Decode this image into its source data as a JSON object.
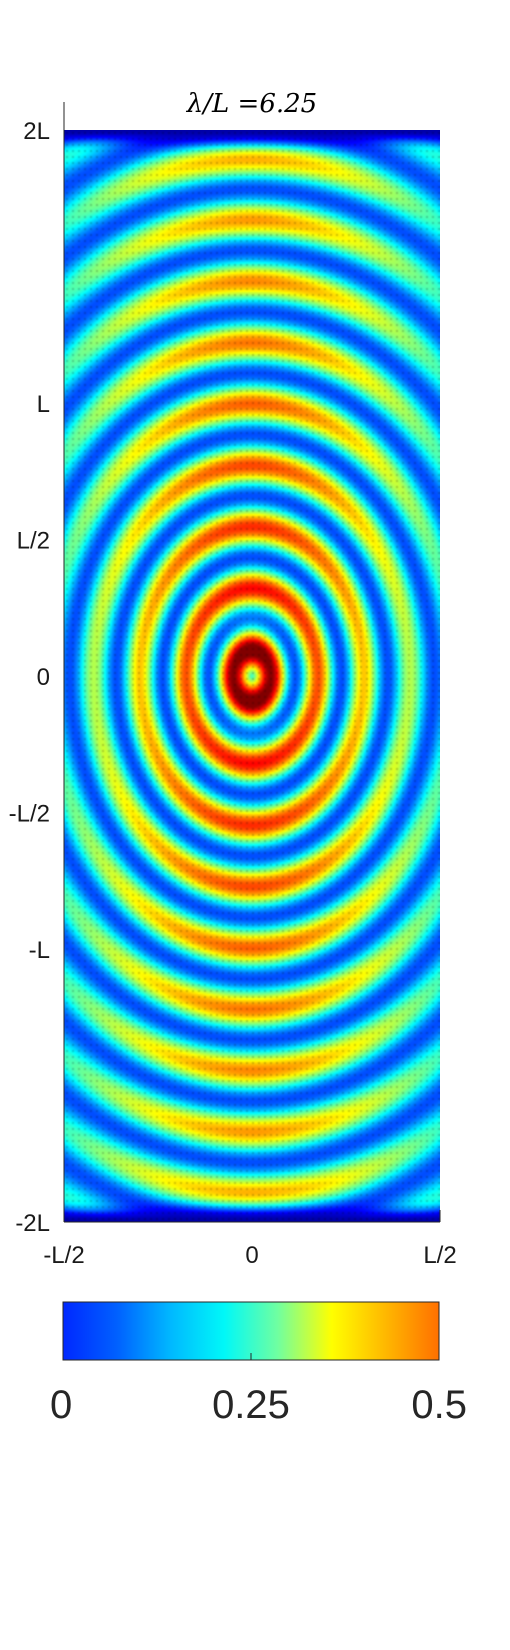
{
  "chart_data": {
    "type": "heatmap",
    "title": "λ/L =6.25",
    "xlabel": "",
    "ylabel": "",
    "x_ticks": [
      {
        "value": -0.5,
        "label": "-L/2"
      },
      {
        "value": 0,
        "label": "0"
      },
      {
        "value": 0.5,
        "label": "L/2"
      }
    ],
    "y_ticks": [
      {
        "value": 2,
        "label": "2L"
      },
      {
        "value": 1,
        "label": "L"
      },
      {
        "value": 0.5,
        "label": "L/2"
      },
      {
        "value": 0,
        "label": "0"
      },
      {
        "value": -0.5,
        "label": "-L/2"
      },
      {
        "value": -1,
        "label": "-L"
      },
      {
        "value": -2,
        "label": "-2L"
      }
    ],
    "xlim": [
      -0.5,
      0.5
    ],
    "ylim": [
      -2,
      2
    ],
    "colormap": "jet",
    "colormap_stops": [
      "#0028ff",
      "#0060ff",
      "#00b8ff",
      "#00f8f8",
      "#70ffa0",
      "#ffff00",
      "#ffb800",
      "#ff7000"
    ],
    "colorbar": {
      "range": [
        0,
        0.5
      ],
      "ticks": [
        {
          "value": 0,
          "label": "0"
        },
        {
          "value": 0.25,
          "label": "0.25"
        },
        {
          "value": 0.5,
          "label": "0.5"
        }
      ]
    },
    "field_description_peaks": [
      {
        "y": 0,
        "value": 0.5
      },
      {
        "y": 1.72,
        "value": 0.33
      },
      {
        "y": -1.55,
        "value": 0.33
      },
      {
        "y": 2,
        "value": 0.02
      },
      {
        "y": -2,
        "value": 0.02
      }
    ]
  }
}
